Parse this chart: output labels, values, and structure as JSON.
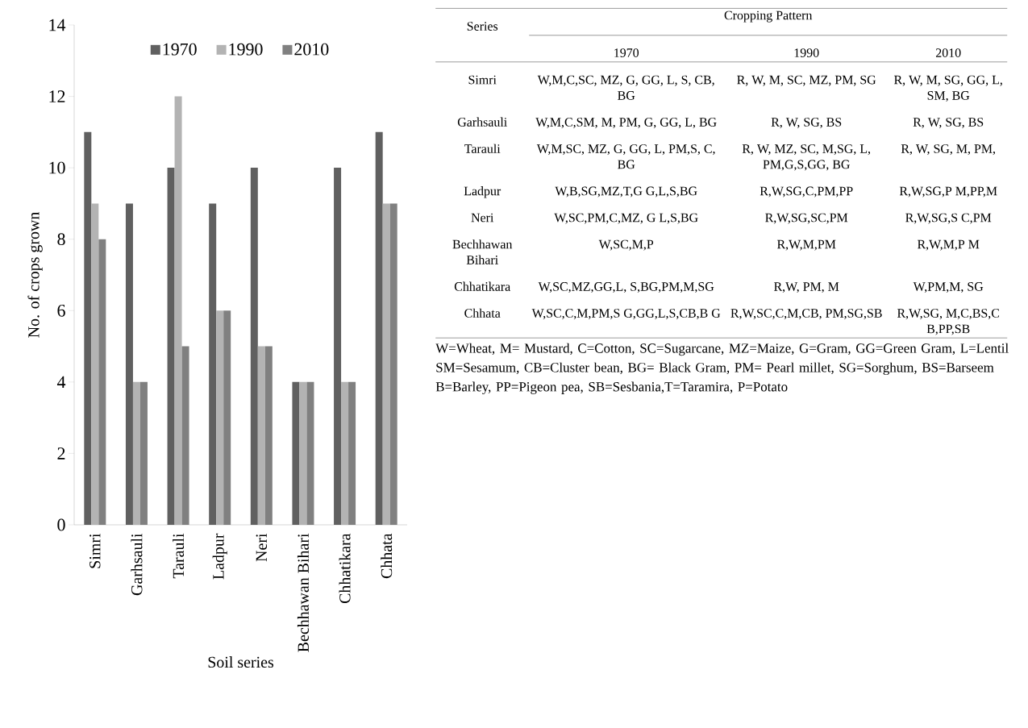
{
  "chart_data": [
    {
      "type": "bar",
      "xlabel": "Soil series",
      "ylabel": "No. of crops grown",
      "categories": [
        "Simri",
        "Garhsauli",
        "Tarauli",
        "Ladpur",
        "Neri",
        "Bechhawan Bihari",
        "Chhatikara",
        "Chhata"
      ],
      "series": [
        {
          "name": "1970",
          "color": "#606060",
          "values": [
            11,
            9,
            10,
            9,
            10,
            4,
            10,
            11
          ]
        },
        {
          "name": "1990",
          "color": "#b3b3b3",
          "values": [
            9,
            4,
            12,
            6,
            5,
            4,
            4,
            9
          ]
        },
        {
          "name": "2010",
          "color": "#808080",
          "values": [
            8,
            4,
            5,
            6,
            5,
            4,
            4,
            9
          ]
        }
      ],
      "ylim": [
        0,
        14
      ],
      "yticks": [
        0,
        2,
        4,
        6,
        8,
        10,
        12,
        14
      ],
      "grid": false,
      "legend": "top"
    },
    {
      "type": "other",
      "title": "Cropping Pattern",
      "ylabel": "Series",
      "categories": [
        "1970",
        "1990",
        "2010"
      ],
      "y_categories": [
        "Simri",
        "Garhsauli",
        "Tarauli",
        "Ladpur",
        "Neri",
        "Bechhawan Bihari",
        "Chhatikara",
        "Chhata"
      ],
      "cell_labels": [
        [
          "W,M,C,SC, MZ, G, GG, L, S, CB, BG",
          "R, W, M, SC, MZ, PM, SG",
          "R, W, M, SG, GG, L, SM, BG"
        ],
        [
          "W,M,C,SM, M, PM, G, GG, L, BG",
          "R, W, SG, BS",
          "R, W, SG, BS"
        ],
        [
          "W,M,SC, MZ, G, GG, L, PM,S, C, BG",
          "R, W, MZ, SC, M,SG, L, PM,G,S,GG, BG",
          "R, W, SG, M, PM,"
        ],
        [
          "W,B,SG,MZ,T,G G,L,S,BG",
          "R,W,SG,C,PM,PP",
          "R,W,SG,P M,PP,M"
        ],
        [
          "W,SC,PM,C,MZ, G L,S,BG",
          "R,W,SG,SC,PM",
          "R,W,SG,S C,PM"
        ],
        [
          "W,SC,M,P",
          "R,W,M,PM",
          "R,W,M,P M"
        ],
        [
          "W,SC,MZ,GG,L, S,BG,PM,M,SG",
          "R,W, PM, M",
          "W,PM,M, SG"
        ],
        [
          "W,SC,C,M,PM,S G,GG,L,S,CB,B G",
          "R,W,SC,C,M,CB, PM,SG,SB",
          "R,W,SG, M,C,BS,C B,PP,SB"
        ]
      ],
      "annotations": [
        "W=Wheat, M= Mustard, C=Cotton, SC=Sugarcane, MZ=Maize, G=Gram, GG=Green Gram, L=Lentil SM=Sesamum, CB=Cluster bean, BG= Black Gram, PM= Pearl millet, SG=Sorghum, BS=Barseem B=Barley, PP=Pigeon pea, SB=Sesbania,T=Taramira, P=Potato"
      ]
    }
  ]
}
